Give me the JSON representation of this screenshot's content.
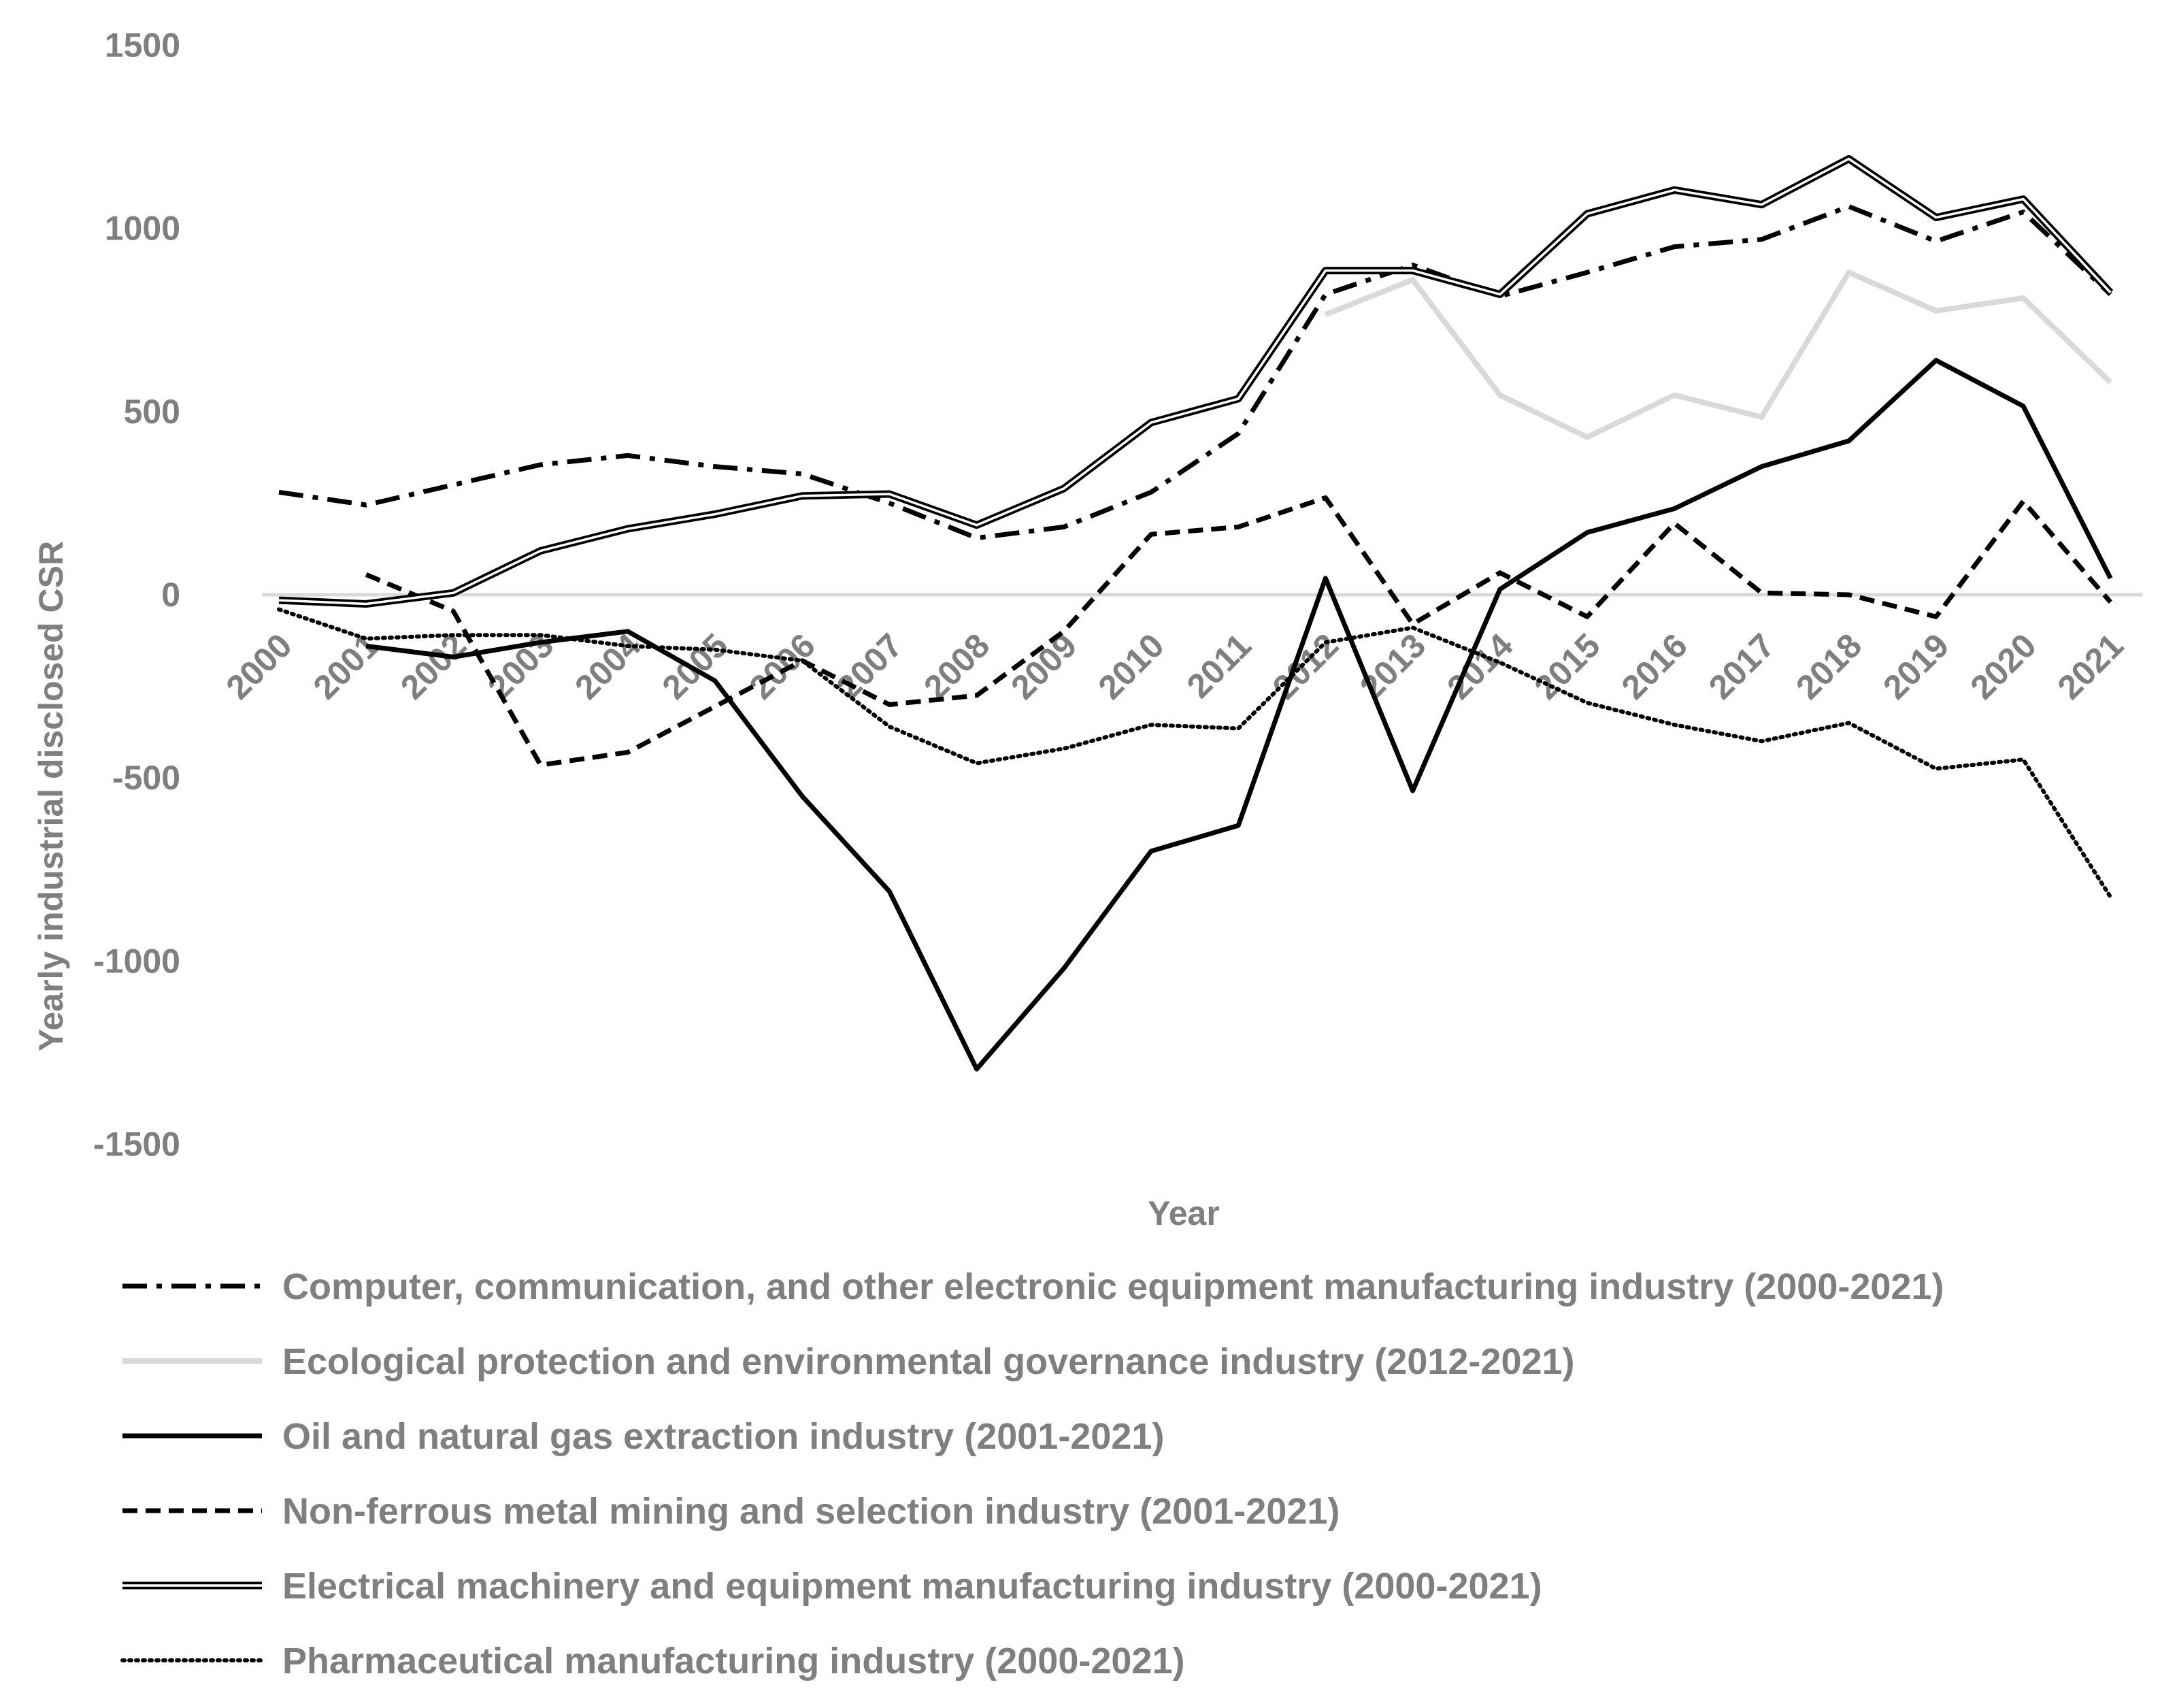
{
  "chart_data": {
    "type": "line",
    "xlabel": "Year",
    "ylabel": "Yearly industrial disclosed CSR",
    "ylim": [
      -1500,
      1500
    ],
    "yticks": [
      "1500",
      "1000",
      "500",
      "0",
      "-500",
      "-1000",
      "-1500"
    ],
    "ytick_values": [
      1500,
      1000,
      500,
      0,
      -500,
      -1000,
      -1500
    ],
    "categories": [
      "2000",
      "2001",
      "2002",
      "2003",
      "2004",
      "2005",
      "2006",
      "2007",
      "2008",
      "2009",
      "2010",
      "2011",
      "2012",
      "2013",
      "2014",
      "2015",
      "2016",
      "2017",
      "2018",
      "2019",
      "2020",
      "2021"
    ],
    "grid": false,
    "legend_position": "bottom",
    "series": [
      {
        "name": "Computer, communication, and other electronic equipment manufacturing industry (2000-2021)",
        "style": "dashdot",
        "color": "#000000",
        "values": [
          280,
          245,
          300,
          355,
          380,
          350,
          330,
          250,
          155,
          185,
          280,
          440,
          820,
          900,
          815,
          880,
          950,
          970,
          1060,
          965,
          1045,
          820
        ]
      },
      {
        "name": "Ecological protection and environmental governance industry (2012-2021)",
        "style": "solid-light",
        "color": "#d9d9d9",
        "values": [
          null,
          null,
          null,
          null,
          null,
          null,
          null,
          null,
          null,
          null,
          null,
          null,
          765,
          860,
          545,
          430,
          545,
          485,
          880,
          775,
          810,
          580
        ]
      },
      {
        "name": "Oil and natural gas extraction industry (2001-2021)",
        "style": "solid",
        "color": "#000000",
        "values": [
          null,
          -140,
          -170,
          -130,
          -100,
          -235,
          -550,
          -810,
          -1295,
          -1020,
          -700,
          -630,
          45,
          -535,
          15,
          170,
          235,
          350,
          420,
          640,
          515,
          45
        ]
      },
      {
        "name": "Non-ferrous metal mining and selection industry (2001-2021)",
        "style": "dashed",
        "color": "#000000",
        "values": [
          null,
          55,
          -45,
          -465,
          -430,
          -305,
          -180,
          -300,
          -275,
          -100,
          165,
          185,
          265,
          -80,
          60,
          -60,
          195,
          5,
          0,
          -60,
          255,
          -20
        ]
      },
      {
        "name": "Electrical machinery and equipment manufacturing industry (2000-2021)",
        "style": "double",
        "color": "#000000",
        "values": [
          -15,
          -25,
          5,
          120,
          180,
          220,
          270,
          275,
          190,
          290,
          470,
          535,
          885,
          885,
          820,
          1040,
          1105,
          1065,
          1190,
          1030,
          1080,
          825
        ]
      },
      {
        "name": "Pharmaceutical manufacturing industry (2000-2021)",
        "style": "dotted",
        "color": "#000000",
        "values": [
          -40,
          -120,
          -110,
          -110,
          -140,
          -150,
          -180,
          -360,
          -460,
          -420,
          -355,
          -365,
          -130,
          -90,
          -185,
          -295,
          -355,
          -400,
          -350,
          -475,
          -450,
          -825
        ]
      }
    ]
  }
}
